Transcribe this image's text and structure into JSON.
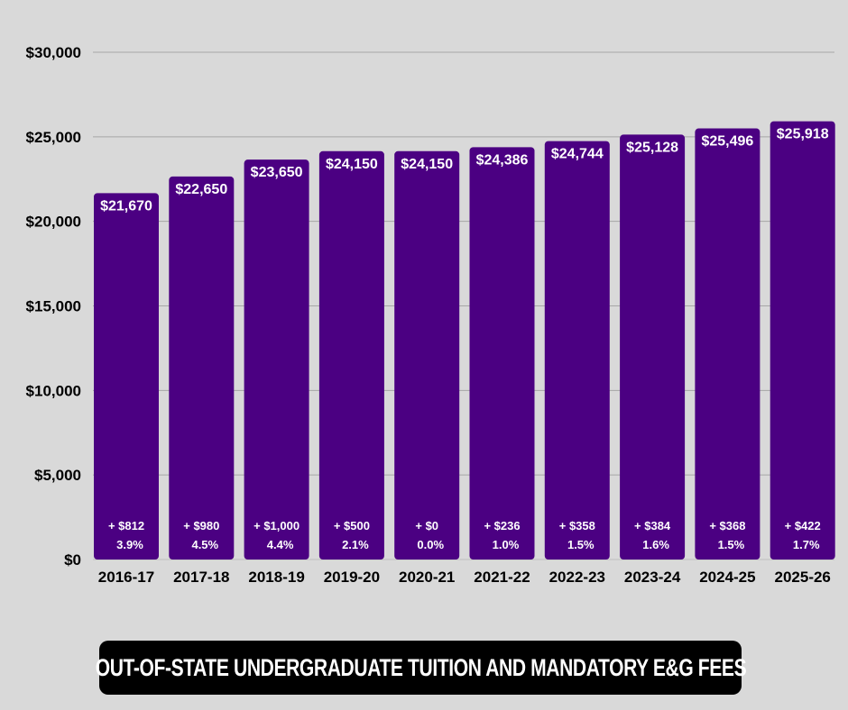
{
  "chart_data": {
    "type": "bar",
    "title": "OUT-OF-STATE UNDERGRADUATE TUITION AND MANDATORY E&G FEES",
    "categories": [
      "2016-17",
      "2017-18",
      "2018-19",
      "2019-20",
      "2020-21",
      "2021-22",
      "2022-23",
      "2023-24",
      "2024-25",
      "2025-26"
    ],
    "values": [
      21670,
      22650,
      23650,
      24150,
      24150,
      24386,
      24744,
      25128,
      25496,
      25918
    ],
    "data_labels": [
      "$21,670",
      "$22,650",
      "$23,650",
      "$24,150",
      "$24,150",
      "$24,386",
      "$24,744",
      "$25,128",
      "$25,496",
      "$25,918"
    ],
    "increase_labels": [
      "+ $812",
      "+ $980",
      "+ $1,000",
      "+ $500",
      "+ $0",
      "+ $236",
      "+ $358",
      "+ $384",
      "+ $368",
      "+ $422"
    ],
    "percent_labels": [
      "3.9%",
      "4.5%",
      "4.4%",
      "2.1%",
      "0.0%",
      "1.0%",
      "1.5%",
      "1.6%",
      "1.5%",
      "1.7%"
    ],
    "ylim": [
      0,
      30000
    ],
    "yticks": [
      0,
      5000,
      10000,
      15000,
      20000,
      25000,
      30000
    ],
    "ytick_labels": [
      "$0",
      "$5,000",
      "$10,000",
      "$15,000",
      "$20,000",
      "$25,000",
      "$30,000"
    ],
    "xlabel": "",
    "ylabel": "",
    "grid": true,
    "legend": "none",
    "colors": {
      "bar": "#4b0082",
      "background": "#d9d9d9",
      "grid": "#a6a6a6"
    }
  }
}
